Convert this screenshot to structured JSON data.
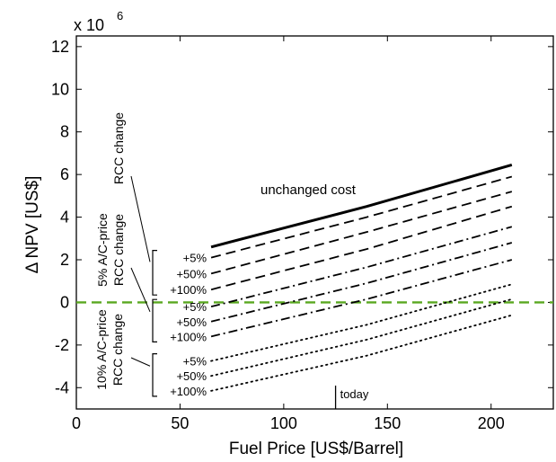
{
  "chart_data": {
    "type": "line",
    "xlabel": "Fuel Price [US$/Barrel]",
    "ylabel": "Δ NPV [US$]",
    "y_multiplier_label": "x 10",
    "y_multiplier_exponent": "6",
    "xlim": [
      0,
      230
    ],
    "ylim": [
      -5,
      12.5
    ],
    "x_ticks": [
      0,
      50,
      100,
      150,
      200
    ],
    "y_ticks": [
      -4,
      -2,
      0,
      2,
      4,
      6,
      8,
      10,
      12
    ],
    "x_tick_labels": [
      "0",
      "50",
      "100",
      "150",
      "200"
    ],
    "y_tick_labels": [
      "-4",
      "-2",
      "0",
      "2",
      "4",
      "6",
      "8",
      "10",
      "12"
    ],
    "grid": false,
    "reference_line": {
      "y": 0,
      "color": "#5aa820",
      "style": "dashed"
    },
    "marker": {
      "x": 125,
      "label": "today"
    },
    "series": [
      {
        "name": "unchanged cost",
        "style": "solid",
        "x": [
          65,
          140,
          210
        ],
        "y": [
          2.6,
          4.5,
          6.45
        ]
      },
      {
        "name": "+5%",
        "style": "dashed",
        "x": [
          65,
          140,
          210
        ],
        "y": [
          2.1,
          4.0,
          5.9
        ]
      },
      {
        "name": "+50%",
        "style": "dashed",
        "x": [
          65,
          140,
          210
        ],
        "y": [
          1.35,
          3.3,
          5.2
        ]
      },
      {
        "name": "+100%",
        "style": "dashed",
        "x": [
          65,
          140,
          210
        ],
        "y": [
          0.6,
          2.5,
          4.5
        ]
      },
      {
        "name": "+5%",
        "style": "dashdot",
        "x": [
          65,
          140,
          210
        ],
        "y": [
          -0.2,
          1.65,
          3.55
        ]
      },
      {
        "name": "+50%",
        "style": "dashdot",
        "x": [
          65,
          140,
          210
        ],
        "y": [
          -0.9,
          0.9,
          2.8
        ]
      },
      {
        "name": "+100%",
        "style": "dashdot",
        "x": [
          65,
          140,
          210
        ],
        "y": [
          -1.6,
          0.15,
          2.0
        ]
      },
      {
        "name": "+5%",
        "style": "dotted",
        "x": [
          65,
          140,
          210
        ],
        "y": [
          -2.75,
          -1.05,
          0.85
        ]
      },
      {
        "name": "+50%",
        "style": "dotted",
        "x": [
          65,
          140,
          210
        ],
        "y": [
          -3.45,
          -1.75,
          0.15
        ]
      },
      {
        "name": "+100%",
        "style": "dotted",
        "x": [
          65,
          140,
          210
        ],
        "y": [
          -4.15,
          -2.5,
          -0.6
        ]
      }
    ],
    "annotations": {
      "unchanged_cost": "unchanged cost",
      "group1_label_line1": "RCC change",
      "group2_label_line1": "5% A/C-price",
      "group2_label_line2": "RCC change",
      "group3_label_line1": "10% A/C-price",
      "group3_label_line2": "RCC change"
    }
  }
}
